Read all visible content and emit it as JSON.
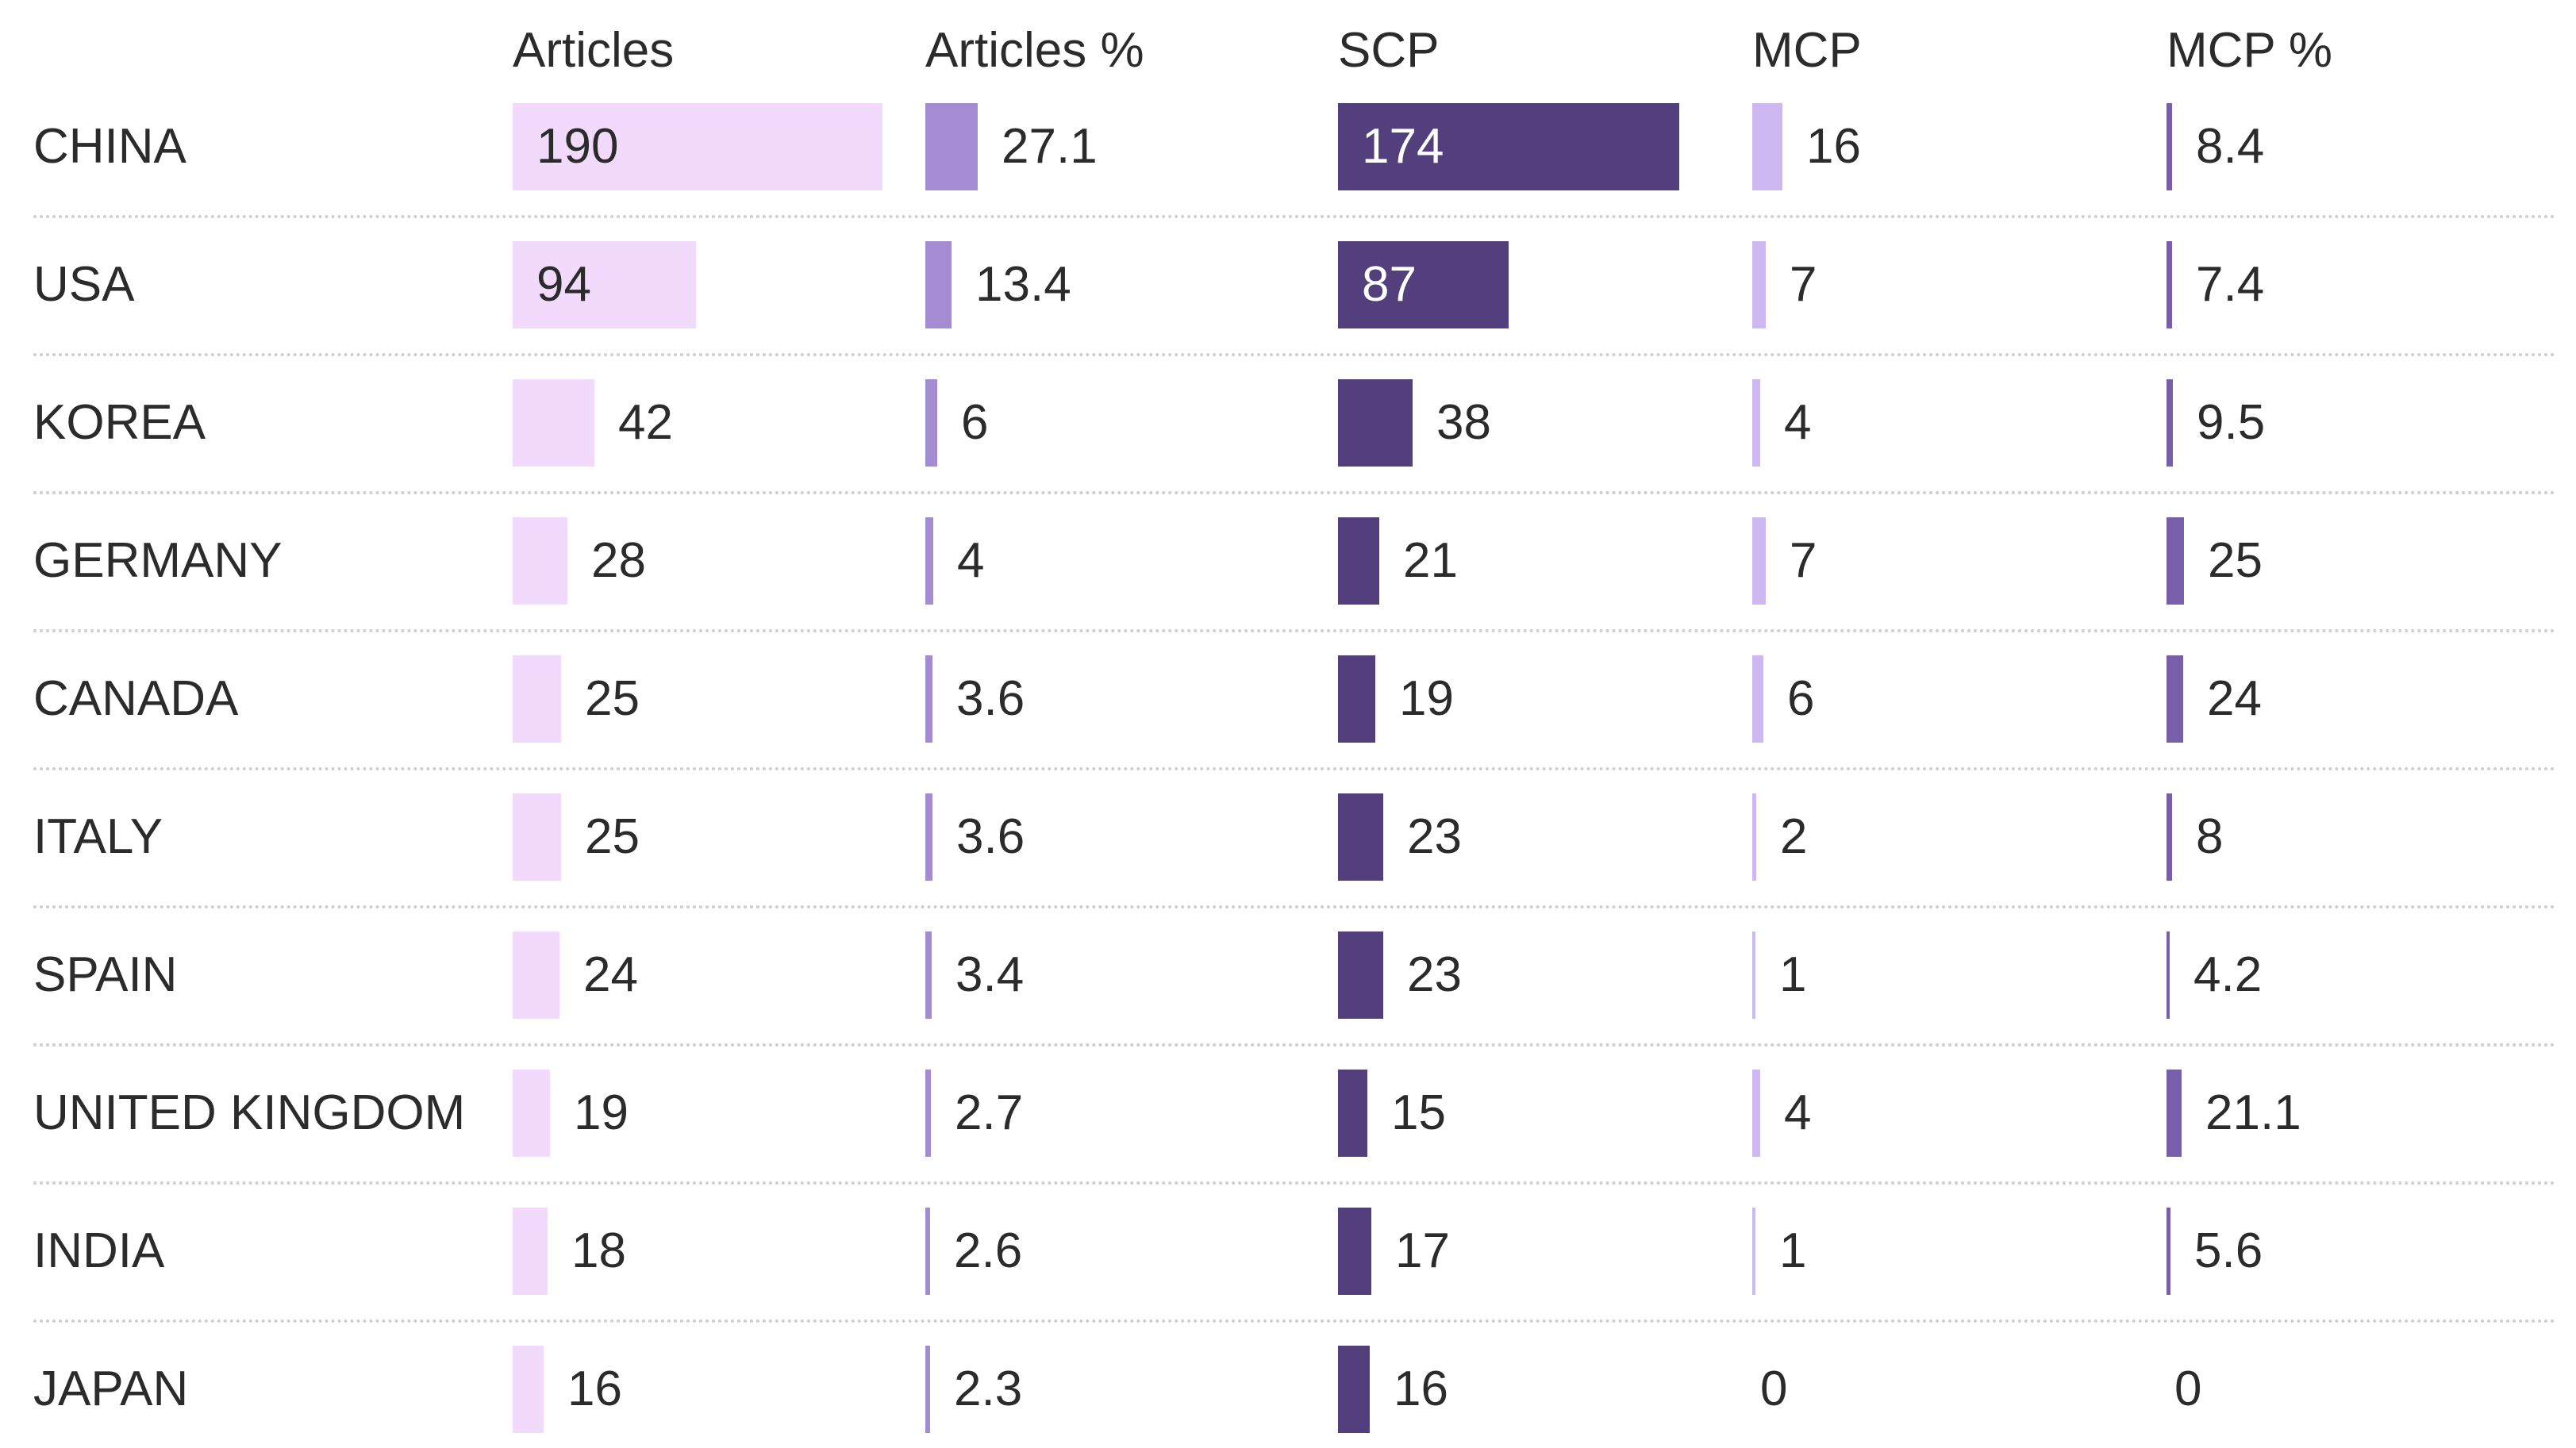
{
  "chart_data": {
    "type": "table",
    "columns": [
      {
        "key": "articles",
        "label": "Articles",
        "max": 190,
        "color": "#f1dafb",
        "label_inside": "light"
      },
      {
        "key": "articles_pct",
        "label": "Articles %",
        "max": 27.1,
        "color": "#a48bd2",
        "label_inside": "none"
      },
      {
        "key": "scp",
        "label": "SCP",
        "max": 174,
        "color": "#533f7c",
        "label_inside": "dark"
      },
      {
        "key": "mcp",
        "label": "MCP",
        "max": 16,
        "color": "#cdb8f2",
        "label_inside": "none"
      },
      {
        "key": "mcp_pct",
        "label": "MCP %",
        "max": 25,
        "color": "#7760a9",
        "label_inside": "none"
      }
    ],
    "rows": [
      {
        "country": "CHINA",
        "articles": 190,
        "articles_pct": 27.1,
        "scp": 174,
        "mcp": 16,
        "mcp_pct": 8.4
      },
      {
        "country": "USA",
        "articles": 94,
        "articles_pct": 13.4,
        "scp": 87,
        "mcp": 7,
        "mcp_pct": 7.4
      },
      {
        "country": "KOREA",
        "articles": 42,
        "articles_pct": 6,
        "scp": 38,
        "mcp": 4,
        "mcp_pct": 9.5
      },
      {
        "country": "GERMANY",
        "articles": 28,
        "articles_pct": 4,
        "scp": 21,
        "mcp": 7,
        "mcp_pct": 25
      },
      {
        "country": "CANADA",
        "articles": 25,
        "articles_pct": 3.6,
        "scp": 19,
        "mcp": 6,
        "mcp_pct": 24
      },
      {
        "country": "ITALY",
        "articles": 25,
        "articles_pct": 3.6,
        "scp": 23,
        "mcp": 2,
        "mcp_pct": 8
      },
      {
        "country": "SPAIN",
        "articles": 24,
        "articles_pct": 3.4,
        "scp": 23,
        "mcp": 1,
        "mcp_pct": 4.2
      },
      {
        "country": "UNITED KINGDOM",
        "articles": 19,
        "articles_pct": 2.7,
        "scp": 15,
        "mcp": 4,
        "mcp_pct": 21.1
      },
      {
        "country": "INDIA",
        "articles": 18,
        "articles_pct": 2.6,
        "scp": 17,
        "mcp": 1,
        "mcp_pct": 5.6
      },
      {
        "country": "JAPAN",
        "articles": 16,
        "articles_pct": 2.3,
        "scp": 16,
        "mcp": 0,
        "mcp_pct": 0
      }
    ]
  }
}
